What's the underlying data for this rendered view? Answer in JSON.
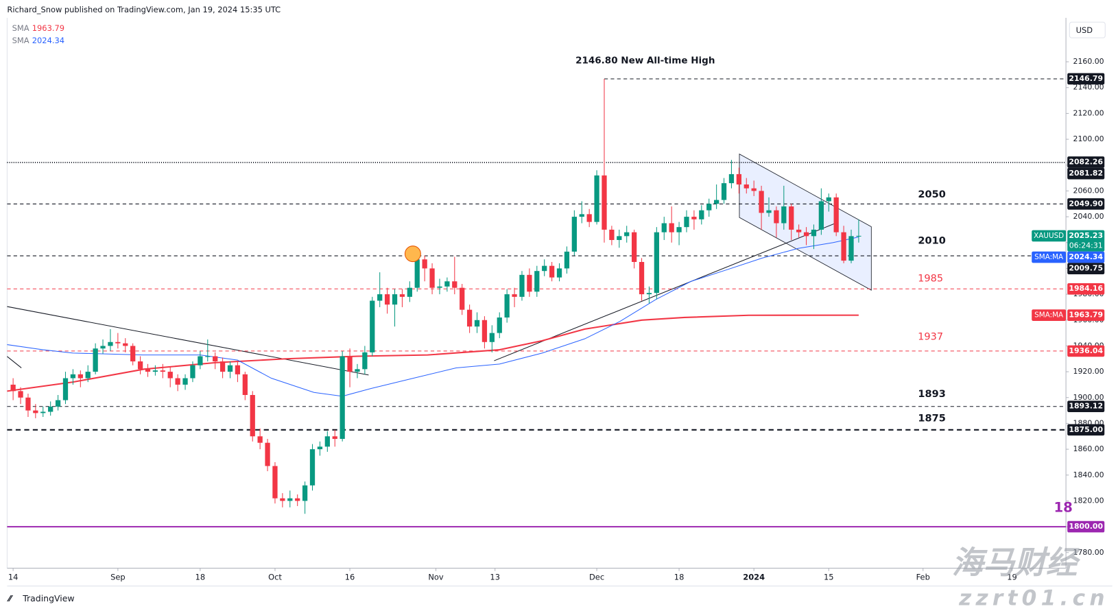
{
  "header": "Richard_Snow published on TradingView.com, Jan 19, 2024 15:35 UTC",
  "footer": "TradingView",
  "watermark": [
    "海马财经",
    "zzrt01.cn"
  ],
  "chart_data": {
    "type": "candlestick",
    "symbol": "XAUUSD",
    "currency": "USD",
    "countdown": "06:24:31",
    "up_color": "#089981",
    "down_color": "#f23645",
    "grid": false,
    "xlim": [
      -0.8,
      140.7
    ],
    "xticks": [
      {
        "value": 0,
        "label": "14"
      },
      {
        "value": 14,
        "label": "Sep"
      },
      {
        "value": 25,
        "label": "18"
      },
      {
        "value": 35,
        "label": "Oct"
      },
      {
        "value": 45,
        "label": "16"
      },
      {
        "value": 56.5,
        "label": "Nov"
      },
      {
        "value": 64.4,
        "label": "13"
      },
      {
        "value": 78,
        "label": "Dec"
      },
      {
        "value": 89,
        "label": "18"
      },
      {
        "value": 99,
        "label": "2024"
      },
      {
        "value": 109,
        "label": "15"
      },
      {
        "value": 121.6,
        "label": "Feb"
      },
      {
        "value": 133.5,
        "label": "19"
      }
    ],
    "ylim": [
      1769,
      2194
    ],
    "yticks": [
      {
        "value": 1780,
        "label": "1780.00"
      },
      {
        "value": 1800,
        "label": "1800.00"
      },
      {
        "value": 1820,
        "label": "1820.00"
      },
      {
        "value": 1840,
        "label": "1840.00"
      },
      {
        "value": 1860,
        "label": "1860.00"
      },
      {
        "value": 1880,
        "label": "1880.00"
      },
      {
        "value": 1900,
        "label": "1900.00"
      },
      {
        "value": 1920,
        "label": "1920.00"
      },
      {
        "value": 1940,
        "label": "1940.00"
      },
      {
        "value": 1960,
        "label": "1960.00"
      },
      {
        "value": 1980,
        "label": "1980.00"
      },
      {
        "value": 2000,
        "label": "2000.00"
      },
      {
        "value": 2020,
        "label": "2020.00"
      },
      {
        "value": 2040,
        "label": "2040.00"
      },
      {
        "value": 2060,
        "label": "2060.00"
      },
      {
        "value": 2080,
        "label": "2080.00"
      },
      {
        "value": 2100,
        "label": "2100.00"
      },
      {
        "value": 2120,
        "label": "2120.00"
      },
      {
        "value": 2140,
        "label": "2140.00"
      },
      {
        "value": 2160,
        "label": "2160.00"
      }
    ],
    "ohlc": [
      [
        1910,
        1915,
        1898,
        1905
      ],
      [
        1905,
        1908,
        1895,
        1900
      ],
      [
        1900,
        1903,
        1885,
        1890
      ],
      [
        1890,
        1895,
        1884,
        1888
      ],
      [
        1888,
        1893,
        1885,
        1889
      ],
      [
        1889,
        1897,
        1886,
        1893
      ],
      [
        1893,
        1902,
        1890,
        1898
      ],
      [
        1898,
        1920,
        1895,
        1915
      ],
      [
        1915,
        1922,
        1910,
        1918
      ],
      [
        1918,
        1921,
        1908,
        1915
      ],
      [
        1915,
        1925,
        1912,
        1920
      ],
      [
        1920,
        1942,
        1918,
        1938
      ],
      [
        1938,
        1945,
        1934,
        1940
      ],
      [
        1940,
        1953,
        1936,
        1943
      ],
      [
        1943,
        1950,
        1938,
        1942
      ],
      [
        1942,
        1946,
        1935,
        1940
      ],
      [
        1940,
        1942,
        1925,
        1928
      ],
      [
        1928,
        1932,
        1918,
        1922
      ],
      [
        1922,
        1926,
        1916,
        1920
      ],
      [
        1920,
        1925,
        1917,
        1921
      ],
      [
        1921,
        1926,
        1915,
        1920
      ],
      [
        1920,
        1924,
        1908,
        1915
      ],
      [
        1915,
        1918,
        1905,
        1910
      ],
      [
        1910,
        1918,
        1906,
        1915
      ],
      [
        1915,
        1928,
        1912,
        1925
      ],
      [
        1925,
        1936,
        1922,
        1932
      ],
      [
        1932,
        1945,
        1928,
        1932
      ],
      [
        1932,
        1935,
        1922,
        1928
      ],
      [
        1928,
        1931,
        1915,
        1920
      ],
      [
        1920,
        1928,
        1915,
        1925
      ],
      [
        1925,
        1928,
        1912,
        1918
      ],
      [
        1918,
        1920,
        1898,
        1902
      ],
      [
        1902,
        1905,
        1866,
        1870
      ],
      [
        1870,
        1876,
        1860,
        1865
      ],
      [
        1865,
        1868,
        1843,
        1847
      ],
      [
        1847,
        1850,
        1818,
        1822
      ],
      [
        1822,
        1826,
        1815,
        1820
      ],
      [
        1820,
        1828,
        1815,
        1822
      ],
      [
        1822,
        1825,
        1816,
        1820
      ],
      [
        1820,
        1835,
        1810,
        1832
      ],
      [
        1832,
        1864,
        1828,
        1860
      ],
      [
        1860,
        1866,
        1855,
        1862
      ],
      [
        1862,
        1874,
        1858,
        1870
      ],
      [
        1870,
        1875,
        1862,
        1868
      ],
      [
        1868,
        1936,
        1866,
        1932
      ],
      [
        1932,
        1938,
        1908,
        1920
      ],
      [
        1920,
        1926,
        1915,
        1922
      ],
      [
        1922,
        1940,
        1918,
        1935
      ],
      [
        1935,
        1978,
        1932,
        1975
      ],
      [
        1975,
        1997,
        1970,
        1980
      ],
      [
        1980,
        1985,
        1965,
        1972
      ],
      [
        1972,
        1984,
        1955,
        1980
      ],
      [
        1980,
        1984,
        1970,
        1978
      ],
      [
        1978,
        1990,
        1974,
        1985
      ],
      [
        1985,
        2010,
        1982,
        2007
      ],
      [
        2007,
        2010,
        1990,
        2000
      ],
      [
        2000,
        2004,
        1980,
        1985
      ],
      [
        1985,
        1992,
        1980,
        1986
      ],
      [
        1986,
        1993,
        1982,
        1990
      ],
      [
        1990,
        2009,
        1980,
        1985
      ],
      [
        1985,
        1988,
        1964,
        1968
      ],
      [
        1968,
        1972,
        1950,
        1955
      ],
      [
        1955,
        1966,
        1950,
        1960
      ],
      [
        1960,
        1963,
        1938,
        1943
      ],
      [
        1943,
        1956,
        1935,
        1950
      ],
      [
        1950,
        1966,
        1946,
        1962
      ],
      [
        1962,
        1984,
        1958,
        1980
      ],
      [
        1980,
        1985,
        1970,
        1978
      ],
      [
        1978,
        1998,
        1975,
        1995
      ],
      [
        1995,
        2000,
        1978,
        1982
      ],
      [
        1982,
        2002,
        1978,
        1998
      ],
      [
        1998,
        2007,
        1994,
        2002
      ],
      [
        2002,
        2005,
        1990,
        1993
      ],
      [
        1993,
        2004,
        1990,
        2000
      ],
      [
        2000,
        2017,
        1996,
        2013
      ],
      [
        2013,
        2045,
        2010,
        2040
      ],
      [
        2040,
        2052,
        2035,
        2042
      ],
      [
        2042,
        2046,
        2032,
        2036
      ],
      [
        2036,
        2076,
        2034,
        2072
      ],
      [
        2072,
        2146.8,
        2020,
        2030
      ],
      [
        2030,
        2033,
        2018,
        2022
      ],
      [
        2022,
        2030,
        2016,
        2025
      ],
      [
        2025,
        2033,
        2020,
        2028
      ],
      [
        2028,
        2030,
        2000,
        2005
      ],
      [
        2005,
        2008,
        1975,
        1980
      ],
      [
        1980,
        1986,
        1973,
        1981
      ],
      [
        1981,
        2032,
        1976,
        2028
      ],
      [
        2028,
        2040,
        2022,
        2035
      ],
      [
        2035,
        2048,
        2020,
        2028
      ],
      [
        2028,
        2036,
        2018,
        2032
      ],
      [
        2032,
        2045,
        2028,
        2040
      ],
      [
        2040,
        2045,
        2030,
        2038
      ],
      [
        2038,
        2049,
        2034,
        2045
      ],
      [
        2045,
        2054,
        2040,
        2050
      ],
      [
        2050,
        2065,
        2046,
        2053
      ],
      [
        2053,
        2070,
        2050,
        2066
      ],
      [
        2066,
        2084,
        2062,
        2073
      ],
      [
        2073,
        2078,
        2058,
        2065
      ],
      [
        2065,
        2070,
        2058,
        2062
      ],
      [
        2062,
        2068,
        2056,
        2060
      ],
      [
        2060,
        2064,
        2030,
        2043
      ],
      [
        2043,
        2055,
        2040,
        2045
      ],
      [
        2045,
        2048,
        2024,
        2035
      ],
      [
        2035,
        2064,
        2030,
        2048
      ],
      [
        2048,
        2050,
        2022,
        2030
      ],
      [
        2030,
        2034,
        2024,
        2028
      ],
      [
        2028,
        2032,
        2018,
        2025
      ],
      [
        2025,
        2034,
        2015,
        2030
      ],
      [
        2030,
        2062,
        2026,
        2052
      ],
      [
        2052,
        2058,
        2044,
        2055
      ],
      [
        2055,
        2058,
        2025,
        2028
      ],
      [
        2028,
        2033,
        2004,
        2006
      ],
      [
        2006,
        2030,
        2004,
        2025
      ],
      [
        2025,
        2038,
        2020,
        2025.23
      ]
    ],
    "series": [
      {
        "name": "SMA",
        "tag": "SMA:MA",
        "color": "#f23645",
        "x": [
          -0.8,
          8,
          17.5,
          27,
          36.4,
          46,
          55.4,
          65,
          70.7,
          76.4,
          84,
          89.7,
          98.3,
          113
        ],
        "values": [
          1905,
          1912,
          1922,
          1927,
          1930,
          1932,
          1933,
          1937,
          1944,
          1953,
          1960,
          1962,
          1963.7,
          1963.79
        ]
      },
      {
        "name": "SMA",
        "tag": "SMA:MA",
        "color": "#2962ff",
        "x": [
          -0.8,
          4,
          8,
          17.3,
          25,
          30,
          34.5,
          40.2,
          44,
          47.8,
          53.5,
          59.2,
          65,
          70.7,
          76.4,
          81.1,
          85.9,
          90.6,
          95.4,
          100.1,
          104.9,
          109.6,
          113
        ],
        "values": [
          1941,
          1937,
          1934.5,
          1933,
          1933,
          1929,
          1915,
          1904,
          1901,
          1907,
          1915,
          1923,
          1926,
          1934.5,
          1945.5,
          1959,
          1976,
          1990,
          1999,
          2008,
          2015.5,
          2020,
          2024.34
        ]
      }
    ],
    "levels": [
      {
        "value": 2146.79,
        "label": "2146.79",
        "color": "#131722",
        "style": "dashed"
      },
      {
        "value": 2082.26,
        "label": "2082.26",
        "color": "#131722",
        "style": "dotted"
      },
      {
        "value": 2081.82,
        "label": "2081.82",
        "color": "#131722",
        "style": "dotted"
      },
      {
        "value": 2049.9,
        "label": "2049.90",
        "color": "#131722",
        "style": "dashed"
      },
      {
        "value": 2009.75,
        "label": "2009.75",
        "color": "#131722",
        "style": "dashed"
      },
      {
        "value": 1984.16,
        "label": "1984.16",
        "color": "#f23645",
        "style": "dashed"
      },
      {
        "value": 1936.04,
        "label": "1936.04",
        "color": "#f23645",
        "style": "dashed"
      },
      {
        "value": 1893.12,
        "label": "1893.12",
        "color": "#131722",
        "style": "dashed"
      },
      {
        "value": 1875,
        "label": "1875.00",
        "color": "#131722",
        "style": "bold-dashed"
      },
      {
        "value": 1800,
        "label": "1800.00",
        "color": "#9c27b0",
        "style": "solid"
      }
    ],
    "annotations": [
      {
        "text": "2146.80 New All-time High",
        "color": "#131722"
      },
      {
        "text": "2050",
        "color": "#131722"
      },
      {
        "text": "2010",
        "color": "#131722"
      },
      {
        "text": "1985",
        "color": "#f23645"
      },
      {
        "text": "1937",
        "color": "#f23645"
      },
      {
        "text": "1893",
        "color": "#131722"
      },
      {
        "text": "1875",
        "color": "#131722"
      },
      {
        "text": "18",
        "color": "#9c27b0"
      }
    ]
  }
}
